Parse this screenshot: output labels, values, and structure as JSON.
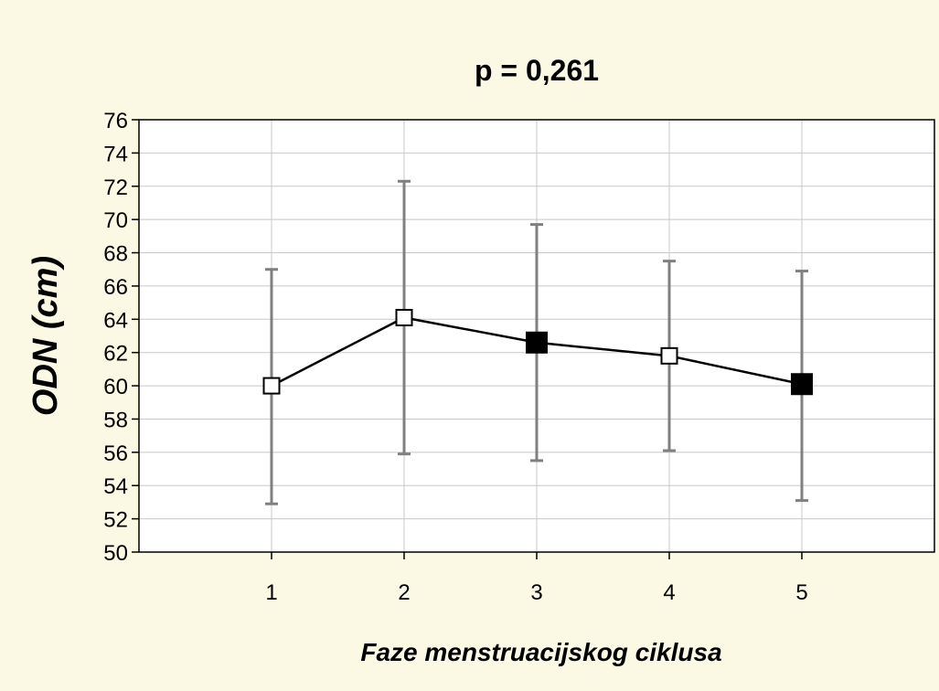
{
  "chart_data": {
    "type": "line",
    "title": "p = 0,261",
    "xlabel": "Faze menstruacijskog ciklusa",
    "ylabel": "ODN (cm)",
    "categories": [
      "1",
      "2",
      "3",
      "4",
      "5"
    ],
    "series": [
      {
        "values": [
          60.0,
          64.1,
          62.6,
          61.8,
          60.1
        ],
        "error_low": [
          52.9,
          55.9,
          55.5,
          56.1,
          53.1
        ],
        "error_high": [
          67.0,
          72.3,
          69.7,
          67.5,
          66.9
        ],
        "markers": [
          "open",
          "open",
          "filled",
          "open",
          "filled"
        ]
      }
    ],
    "ylim": [
      50,
      76
    ],
    "xlim": [
      0,
      6
    ],
    "yticks": [
      50,
      52,
      54,
      56,
      58,
      60,
      62,
      64,
      66,
      68,
      70,
      72,
      74,
      76
    ],
    "grid": true,
    "colors": {
      "background": "#fbf9e4",
      "plot_background": "#ffffff",
      "grid": "#c8c8c8",
      "line": "#000000",
      "errorbar": "#808080"
    }
  }
}
